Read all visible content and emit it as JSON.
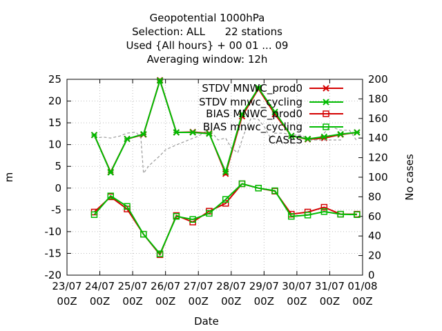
{
  "chart_data": {
    "type": "line",
    "title": [
      "Geopotential 1000hPa",
      "Selection: ALL      22 stations",
      "Used {All hours} + 00 01 ... 09",
      "Averaging window: 12h"
    ],
    "xlabel": "Date",
    "ylabel": "m",
    "y2label": "No cases",
    "ylim": [
      -20,
      25
    ],
    "y2lim": [
      0,
      200
    ],
    "y_ticks": [
      "25",
      "20",
      "15",
      "10",
      "5",
      "0",
      "-5",
      "-10",
      "-15",
      "-20"
    ],
    "y2_ticks": [
      "200",
      "180",
      "160",
      "140",
      "120",
      "100",
      "80",
      "60",
      "40",
      "20",
      "0"
    ],
    "x_ticks": [
      {
        "day": "23/07",
        "hour": "00Z",
        "x": 0
      },
      {
        "day": "24/07",
        "hour": "00Z",
        "x": 1
      },
      {
        "day": "25/07",
        "hour": "00Z",
        "x": 2
      },
      {
        "day": "26/07",
        "hour": "00Z",
        "x": 3
      },
      {
        "day": "27/07",
        "hour": "00Z",
        "x": 4
      },
      {
        "day": "28/07",
        "hour": "00Z",
        "x": 5
      },
      {
        "day": "29/07",
        "hour": "00Z",
        "x": 6
      },
      {
        "day": "30/07",
        "hour": "00Z",
        "x": 7
      },
      {
        "day": "31/07",
        "hour": "00Z",
        "x": 8
      },
      {
        "day": "01/08",
        "hour": "00Z",
        "x": 9
      }
    ],
    "x": [
      0.83,
      1.33,
      1.83,
      2.33,
      2.83,
      3.33,
      3.83,
      4.33,
      4.83,
      5.33,
      5.83,
      6.33,
      6.83,
      7.33,
      7.83,
      8.33,
      8.83
    ],
    "series": [
      {
        "name": "STDV MNWC_prod0",
        "axis": "y1",
        "color": "#d40000",
        "marker": "x",
        "values": [
          12.2,
          3.7,
          11.3,
          12.3,
          24.8,
          12.8,
          12.9,
          12.6,
          3.3,
          16.5,
          22.8,
          17.0,
          12.0,
          11.2,
          11.5,
          12.3,
          12.8
        ]
      },
      {
        "name": "STDV mnwc_cycling",
        "axis": "y1",
        "color": "#00bb00",
        "marker": "x",
        "values": [
          12.2,
          3.6,
          11.3,
          12.4,
          24.7,
          12.8,
          12.8,
          12.5,
          3.7,
          17.0,
          23.0,
          17.5,
          12.0,
          11.3,
          11.8,
          12.4,
          12.8
        ]
      },
      {
        "name": "BIAS MNWC_prod0",
        "axis": "y1",
        "color": "#d40000",
        "marker": "square",
        "values": [
          -5.5,
          -2.0,
          -4.8,
          -10.6,
          -15.3,
          -6.3,
          -7.8,
          -5.3,
          -3.5,
          1.0,
          0.0,
          -0.7,
          -6.0,
          -5.5,
          -4.4,
          -6.0,
          -6.0
        ]
      },
      {
        "name": "BIAS mnwc_cycling",
        "axis": "y1",
        "color": "#00bb00",
        "marker": "square",
        "values": [
          -6.1,
          -1.8,
          -4.2,
          -10.6,
          -15.1,
          -6.5,
          -7.2,
          -5.8,
          -2.6,
          1.0,
          0.0,
          -0.6,
          -6.5,
          -6.2,
          -5.4,
          -6.0,
          -6.1
        ]
      },
      {
        "name": "CASES",
        "axis": "y2",
        "color": "#999999",
        "dashed": true,
        "x": [
          0.83,
          1.1,
          1.33,
          1.6,
          1.83,
          2.1,
          2.25,
          2.33,
          2.5,
          2.83,
          3.0,
          3.33,
          3.7,
          4.0,
          4.33,
          4.6,
          4.83,
          5.0,
          5.2,
          5.4,
          5.6,
          5.83,
          6.0,
          6.2,
          6.33,
          6.6,
          6.83,
          7.1,
          7.33,
          7.6,
          7.83,
          8.0,
          8.33,
          8.6,
          8.83
        ],
        "values": [
          140,
          141,
          140,
          142,
          145,
          146,
          140,
          104,
          112,
          122,
          128,
          133,
          138,
          142,
          149,
          138,
          140,
          130,
          125,
          145,
          160,
          159,
          152,
          140,
          145,
          145,
          143,
          143,
          140,
          138,
          145,
          152,
          148,
          148,
          137
        ]
      }
    ],
    "grid": true,
    "legend_position": "top-right"
  }
}
